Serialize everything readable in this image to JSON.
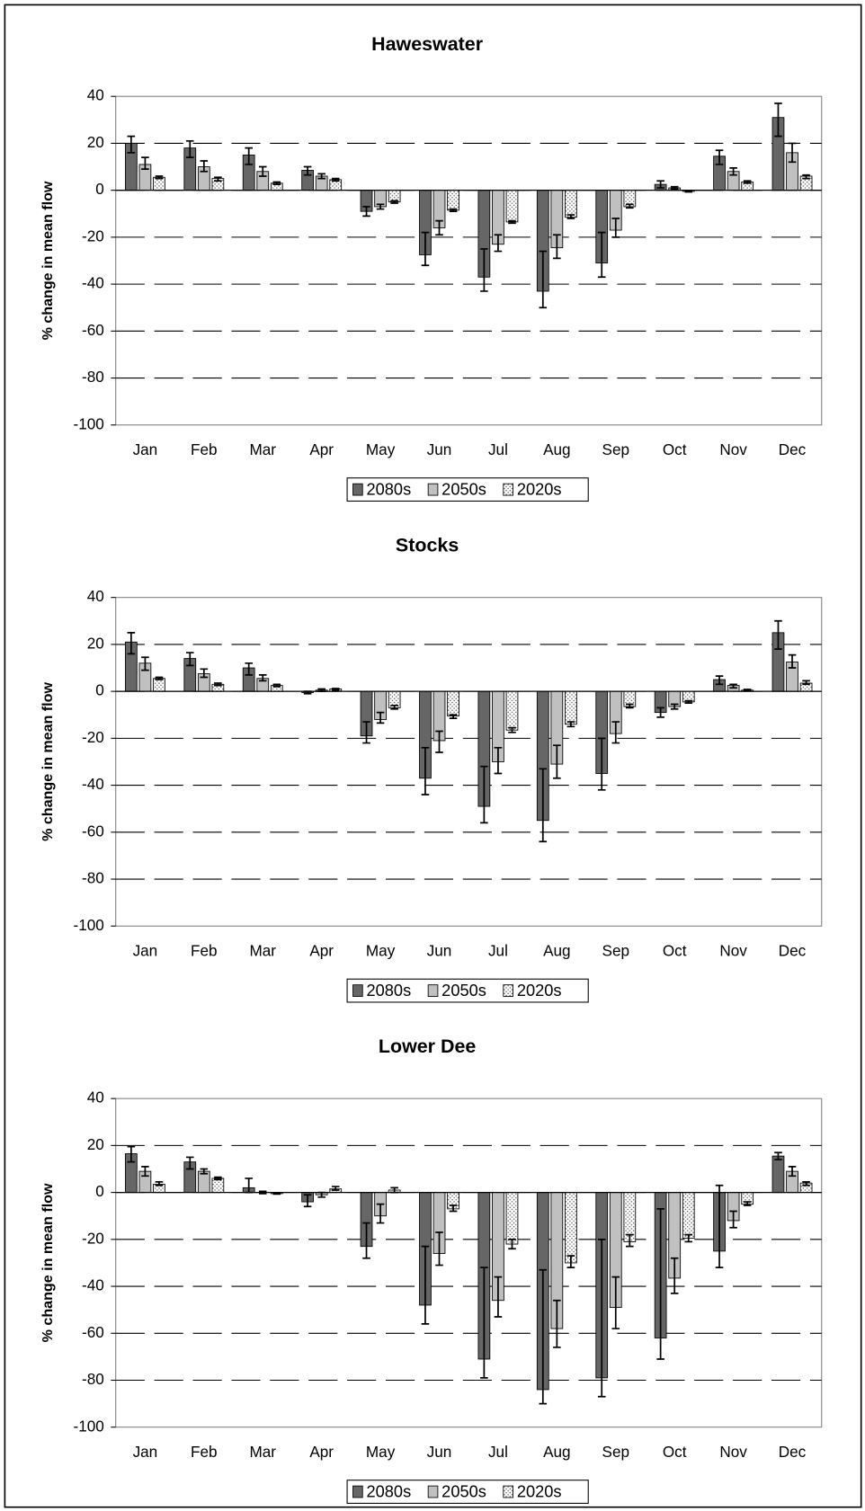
{
  "chart_data": [
    {
      "type": "bar",
      "title": "Haweswater",
      "ylabel": "% change in mean flow",
      "grid": true,
      "legend": "bottom",
      "categories": [
        "Jan",
        "Feb",
        "Mar",
        "Apr",
        "May",
        "Jun",
        "Jul",
        "Aug",
        "Sep",
        "Oct",
        "Nov",
        "Dec"
      ],
      "ylim": [
        -100,
        40
      ],
      "yticks": [
        -100,
        -80,
        -60,
        -40,
        -20,
        0,
        20,
        40
      ],
      "series": [
        {
          "name": "2080s",
          "color": "#666666",
          "values": [
            20,
            18,
            15,
            8.5,
            -9,
            -27.5,
            -37,
            -43,
            -31,
            2.5,
            14.5,
            31
          ],
          "error_low": [
            16,
            14,
            11,
            6.5,
            -11,
            -32,
            -43,
            -50,
            -37,
            1,
            11,
            23
          ],
          "error_high": [
            23,
            21,
            18,
            10,
            -7,
            -18,
            -25,
            -26,
            -18,
            4,
            17,
            37
          ]
        },
        {
          "name": "2050s",
          "color": "#c0c0c0",
          "values": [
            11,
            10,
            8,
            6,
            -7,
            -16,
            -23,
            -24.5,
            -17,
            1,
            8,
            16
          ],
          "error_low": [
            9,
            8,
            6,
            5,
            -8,
            -19,
            -26,
            -29,
            -20,
            0.5,
            6.5,
            12
          ],
          "error_high": [
            14,
            12.5,
            10,
            7,
            -6,
            -13,
            -19,
            -19,
            -12,
            1.5,
            9.5,
            20
          ]
        },
        {
          "name": "2020s",
          "color": "#ffffff",
          "pattern": "dots",
          "values": [
            5.5,
            5,
            3,
            4.5,
            -5,
            -8.5,
            -13.5,
            -11.5,
            -7,
            -0.5,
            3.5,
            6
          ],
          "error_low": [
            5,
            4,
            2.5,
            4,
            -5.5,
            -9,
            -14,
            -12,
            -7.5,
            -0.7,
            3,
            5
          ],
          "error_high": [
            6,
            5.5,
            3.5,
            5,
            -4.5,
            -8,
            -13,
            -10.5,
            -6,
            -0.3,
            4,
            6.5
          ]
        }
      ]
    },
    {
      "type": "bar",
      "title": "Stocks",
      "ylabel": "% change in mean flow",
      "grid": true,
      "legend": "bottom",
      "categories": [
        "Jan",
        "Feb",
        "Mar",
        "Apr",
        "May",
        "Jun",
        "Jul",
        "Aug",
        "Sep",
        "Oct",
        "Nov",
        "Dec"
      ],
      "ylim": [
        -100,
        40
      ],
      "yticks": [
        -100,
        -80,
        -60,
        -40,
        -20,
        0,
        20,
        40
      ],
      "series": [
        {
          "name": "2080s",
          "color": "#666666",
          "values": [
            21,
            14,
            10,
            -0.5,
            -19,
            -37,
            -49,
            -55,
            -35,
            -9,
            5,
            25
          ],
          "error_low": [
            16,
            11,
            7,
            -1,
            -22,
            -44,
            -56,
            -64,
            -42,
            -11,
            3,
            18
          ],
          "error_high": [
            25,
            16.5,
            12,
            0,
            -13,
            -24,
            -32,
            -33,
            -20,
            -7,
            6.5,
            30
          ]
        },
        {
          "name": "2050s",
          "color": "#c0c0c0",
          "values": [
            12,
            7.5,
            5.5,
            0.5,
            -12,
            -21,
            -30,
            -31,
            -18,
            -6.5,
            2.5,
            12.5
          ],
          "error_low": [
            9,
            6,
            4.5,
            0,
            -13.5,
            -26,
            -35,
            -37,
            -22,
            -7.5,
            1.5,
            10
          ],
          "error_high": [
            14.5,
            9.5,
            7,
            1,
            -9,
            -17,
            -24,
            -23,
            -13,
            -5.5,
            3,
            15.5
          ]
        },
        {
          "name": "2020s",
          "color": "#ffffff",
          "pattern": "dots",
          "values": [
            5.5,
            3,
            2.5,
            1,
            -7,
            -10.5,
            -16.5,
            -14,
            -6.5,
            -4.5,
            0.5,
            3.5
          ],
          "error_low": [
            5,
            2.5,
            2,
            0.5,
            -7.5,
            -11.5,
            -17.5,
            -15,
            -7,
            -5,
            0.3,
            3
          ],
          "error_high": [
            6,
            3.5,
            3,
            1.2,
            -6,
            -10,
            -15.5,
            -13,
            -5.5,
            -4,
            0.8,
            4.5
          ]
        }
      ]
    },
    {
      "type": "bar",
      "title": "Lower Dee",
      "ylabel": "% change in mean flow",
      "grid": true,
      "legend": "bottom",
      "categories": [
        "Jan",
        "Feb",
        "Mar",
        "Apr",
        "May",
        "Jun",
        "Jul",
        "Aug",
        "Sep",
        "Oct",
        "Nov",
        "Dec"
      ],
      "ylim": [
        -100,
        40
      ],
      "yticks": [
        -100,
        -80,
        -60,
        -40,
        -20,
        0,
        20,
        40
      ],
      "series": [
        {
          "name": "2080s",
          "color": "#666666",
          "values": [
            16.5,
            13,
            2,
            -4,
            -23,
            -48,
            -71,
            -84,
            -79,
            -62,
            -25,
            15.5
          ],
          "error_low": [
            13,
            10,
            0,
            -6,
            -28,
            -56,
            -79,
            -90,
            -87,
            -71,
            -32,
            14
          ],
          "error_high": [
            19.5,
            15,
            6,
            -1,
            -13,
            -23,
            -32,
            -33,
            -20,
            -7,
            3,
            17
          ]
        },
        {
          "name": "2050s",
          "color": "#c0c0c0",
          "values": [
            9,
            9,
            0,
            -1,
            -10,
            -26,
            -46,
            -58,
            -49,
            -36.5,
            -12,
            9
          ],
          "error_low": [
            7,
            8,
            -0.5,
            -2,
            -13,
            -31,
            -53,
            -66,
            -58,
            -43,
            -15,
            7
          ],
          "error_high": [
            11,
            10,
            0.5,
            0,
            -5,
            -17,
            -36,
            -46,
            -36,
            -28,
            -8,
            11
          ]
        },
        {
          "name": "2020s",
          "color": "#ffffff",
          "pattern": "dots",
          "values": [
            3.5,
            6,
            -0.5,
            1.5,
            1,
            -7,
            -22,
            -30,
            -21,
            -19.5,
            -5,
            4
          ],
          "error_low": [
            3,
            5.5,
            -0.7,
            1,
            0,
            -8,
            -24,
            -32,
            -23,
            -21,
            -5.5,
            3
          ],
          "error_high": [
            4.5,
            6.5,
            -0.3,
            2.5,
            2,
            -5.5,
            -20,
            -27,
            -18,
            -18,
            -4,
            4.5
          ]
        }
      ]
    }
  ]
}
